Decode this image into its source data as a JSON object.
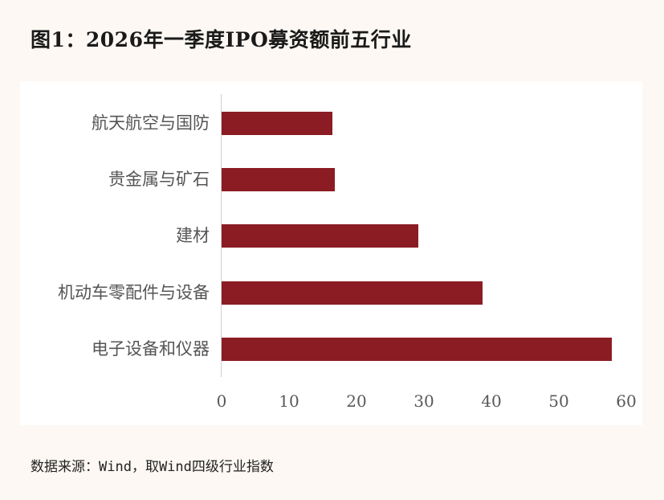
{
  "title": "图1：2026年一季度IPO募资额前五行业",
  "source": "数据来源：Wind，取Wind四级行业指数",
  "colors": {
    "bar": "#8b1c24",
    "background": "#fdf8f3",
    "panel": "#ffffff",
    "axis": "#d0d0d0"
  },
  "chart_data": {
    "type": "bar",
    "orientation": "horizontal",
    "title": "图1：2026年一季度IPO募资额前五行业",
    "xlabel": "",
    "ylabel": "",
    "categories": [
      "航天航空与国防",
      "贵金属与矿石",
      "建材",
      "机动车零配件与设备",
      "电子设备和仪器"
    ],
    "values": [
      16.4,
      16.8,
      29.2,
      38.7,
      57.9
    ],
    "xlim": [
      0,
      60
    ],
    "xticks": [
      "0",
      "10",
      "20",
      "30",
      "40",
      "50",
      "60"
    ],
    "grid": false,
    "legend": null,
    "source": "数据来源：Wind，取Wind四级行业指数"
  }
}
